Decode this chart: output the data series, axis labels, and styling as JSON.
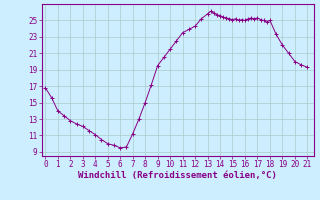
{
  "x": [
    0,
    0.5,
    1,
    1.5,
    2,
    2.5,
    3,
    3.5,
    4,
    4.5,
    5,
    5.5,
    6,
    6.5,
    7,
    7.5,
    8,
    8.5,
    9,
    9.5,
    10,
    10.5,
    11,
    11.5,
    12,
    12.5,
    13,
    13.25,
    13.5,
    13.75,
    14,
    14.25,
    14.5,
    14.75,
    15,
    15.25,
    15.5,
    15.75,
    16,
    16.25,
    16.5,
    16.75,
    17,
    17.25,
    17.5,
    17.75,
    18,
    18.5,
    19,
    19.5,
    20,
    20.5,
    21
  ],
  "y": [
    16.8,
    15.6,
    14.0,
    13.4,
    12.8,
    12.4,
    12.1,
    11.6,
    11.1,
    10.5,
    10.0,
    9.8,
    9.5,
    9.6,
    11.2,
    13.0,
    15.0,
    17.2,
    19.5,
    20.5,
    21.5,
    22.5,
    23.5,
    23.9,
    24.3,
    25.2,
    25.8,
    26.1,
    25.9,
    25.7,
    25.6,
    25.4,
    25.3,
    25.2,
    25.1,
    25.2,
    25.0,
    25.1,
    25.0,
    25.2,
    25.3,
    25.2,
    25.3,
    25.1,
    25.0,
    24.8,
    25.0,
    23.3,
    22.0,
    21.0,
    20.0,
    19.6,
    19.3
  ],
  "line_color": "#880088",
  "marker_color": "#880088",
  "bg_color": "#cceeff",
  "grid_color": "#aacccc",
  "xlabel": "Windchill (Refroidissement éolien,°C)",
  "xlabel_fontsize": 6.5,
  "ytick_labels": [
    9,
    11,
    13,
    15,
    17,
    19,
    21,
    23,
    25
  ],
  "ylim": [
    8.5,
    27.0
  ],
  "xlim": [
    -0.3,
    21.5
  ],
  "xtick_labels": [
    0,
    1,
    2,
    3,
    4,
    5,
    6,
    7,
    8,
    9,
    10,
    11,
    12,
    13,
    14,
    15,
    16,
    17,
    18,
    19,
    20,
    21
  ],
  "tick_fontsize": 5.5
}
